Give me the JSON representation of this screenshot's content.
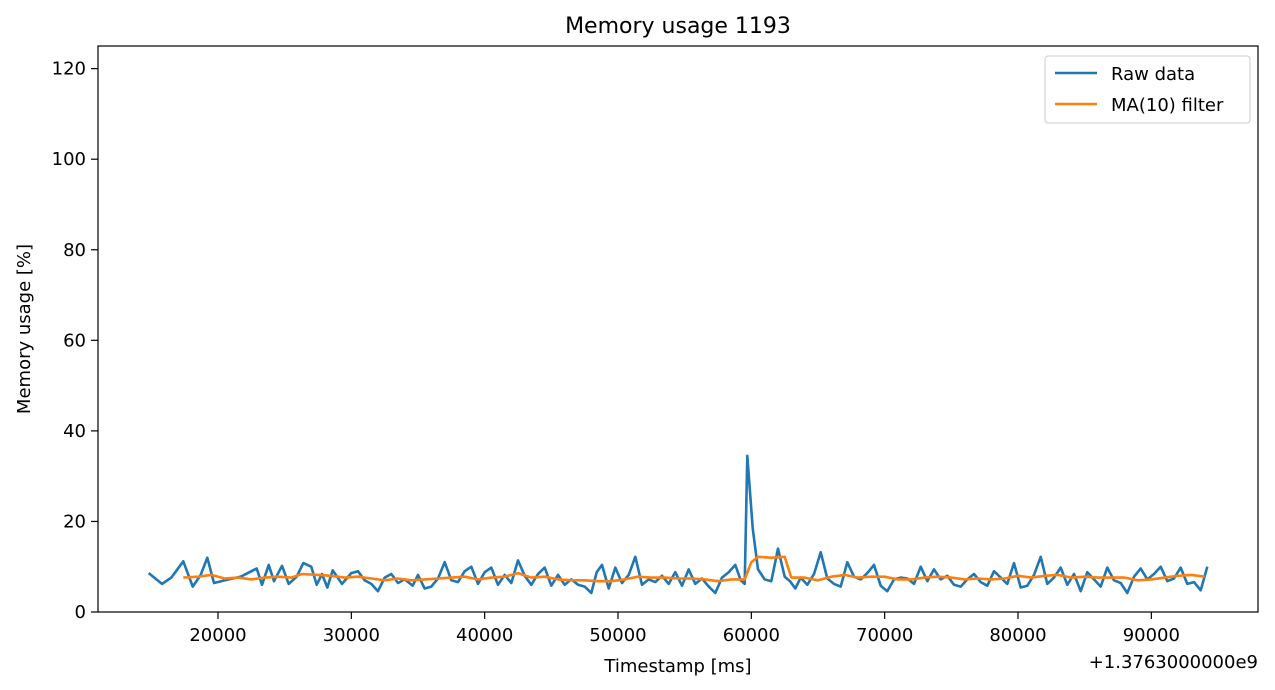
{
  "chart_data": {
    "type": "line",
    "title": "Memory usage 1193",
    "xlabel": "Timestamp [ms]",
    "ylabel": "Memory usage [%]",
    "x_offset_label": "+1.3763000000e9",
    "xlim": [
      11000,
      98000
    ],
    "ylim": [
      0,
      125
    ],
    "xticks": [
      20000,
      30000,
      40000,
      50000,
      60000,
      70000,
      80000,
      90000
    ],
    "xtick_labels": [
      "20000",
      "30000",
      "40000",
      "50000",
      "60000",
      "70000",
      "80000",
      "90000"
    ],
    "yticks": [
      0,
      20,
      40,
      60,
      80,
      100,
      120
    ],
    "ytick_labels": [
      "0",
      "20",
      "40",
      "60",
      "80",
      "100",
      "120"
    ],
    "grid": false,
    "legend_position": "top-right",
    "series": [
      {
        "name": "Raw data",
        "color": "#1f77b4",
        "points": [
          [
            14800,
            8.6
          ],
          [
            15800,
            6.2
          ],
          [
            16500,
            7.6
          ],
          [
            17400,
            11.2
          ],
          [
            18100,
            5.6
          ],
          [
            18700,
            8.2
          ],
          [
            19200,
            12.0
          ],
          [
            19700,
            6.4
          ],
          [
            20800,
            7.2
          ],
          [
            21700,
            7.8
          ],
          [
            22900,
            9.6
          ],
          [
            23300,
            6.0
          ],
          [
            23800,
            10.4
          ],
          [
            24200,
            6.8
          ],
          [
            24800,
            10.2
          ],
          [
            25300,
            6.2
          ],
          [
            25900,
            7.8
          ],
          [
            26400,
            10.8
          ],
          [
            27000,
            10.0
          ],
          [
            27400,
            6.0
          ],
          [
            27800,
            8.4
          ],
          [
            28200,
            5.4
          ],
          [
            28600,
            9.2
          ],
          [
            29300,
            6.2
          ],
          [
            30000,
            8.6
          ],
          [
            30500,
            9.0
          ],
          [
            31000,
            7.0
          ],
          [
            31500,
            6.2
          ],
          [
            32000,
            4.6
          ],
          [
            32500,
            7.6
          ],
          [
            33000,
            8.4
          ],
          [
            33500,
            6.4
          ],
          [
            34000,
            7.2
          ],
          [
            34600,
            5.8
          ],
          [
            35000,
            8.2
          ],
          [
            35500,
            5.2
          ],
          [
            36000,
            5.6
          ],
          [
            36500,
            7.4
          ],
          [
            37000,
            11.0
          ],
          [
            37500,
            7.0
          ],
          [
            38000,
            6.6
          ],
          [
            38500,
            9.0
          ],
          [
            39000,
            10.0
          ],
          [
            39500,
            6.2
          ],
          [
            40000,
            8.8
          ],
          [
            40500,
            9.8
          ],
          [
            41000,
            6.0
          ],
          [
            41500,
            8.2
          ],
          [
            42000,
            6.4
          ],
          [
            42500,
            11.4
          ],
          [
            43000,
            8.0
          ],
          [
            43500,
            6.0
          ],
          [
            44000,
            8.4
          ],
          [
            44500,
            9.8
          ],
          [
            45000,
            5.8
          ],
          [
            45500,
            8.2
          ],
          [
            46000,
            6.0
          ],
          [
            46500,
            7.2
          ],
          [
            47000,
            6.0
          ],
          [
            47500,
            5.6
          ],
          [
            48000,
            4.2
          ],
          [
            48400,
            8.8
          ],
          [
            48800,
            10.4
          ],
          [
            49300,
            5.2
          ],
          [
            49800,
            9.8
          ],
          [
            50300,
            6.4
          ],
          [
            50800,
            8.2
          ],
          [
            51300,
            12.2
          ],
          [
            51800,
            6.0
          ],
          [
            52300,
            7.2
          ],
          [
            52800,
            6.6
          ],
          [
            53300,
            8.0
          ],
          [
            53800,
            6.2
          ],
          [
            54300,
            8.8
          ],
          [
            54800,
            5.8
          ],
          [
            55300,
            9.4
          ],
          [
            55800,
            6.2
          ],
          [
            56300,
            7.4
          ],
          [
            56800,
            5.6
          ],
          [
            57300,
            4.2
          ],
          [
            57800,
            7.6
          ],
          [
            58300,
            8.8
          ],
          [
            58800,
            10.4
          ],
          [
            59200,
            7.0
          ],
          [
            59500,
            6.2
          ],
          [
            59700,
            34.5
          ],
          [
            60100,
            18.5
          ],
          [
            60500,
            9.4
          ],
          [
            61000,
            7.2
          ],
          [
            61500,
            6.8
          ],
          [
            62000,
            14.0
          ],
          [
            62500,
            7.8
          ],
          [
            62900,
            6.8
          ],
          [
            63300,
            5.2
          ],
          [
            63700,
            7.6
          ],
          [
            64200,
            6.0
          ],
          [
            64700,
            8.4
          ],
          [
            65200,
            13.2
          ],
          [
            65700,
            7.4
          ],
          [
            66200,
            6.2
          ],
          [
            66700,
            5.6
          ],
          [
            67200,
            11.0
          ],
          [
            67700,
            7.8
          ],
          [
            68200,
            7.2
          ],
          [
            68700,
            8.6
          ],
          [
            69200,
            10.4
          ],
          [
            69700,
            5.8
          ],
          [
            70200,
            4.6
          ],
          [
            70700,
            7.2
          ],
          [
            71200,
            7.6
          ],
          [
            71700,
            7.4
          ],
          [
            72200,
            6.2
          ],
          [
            72700,
            10.0
          ],
          [
            73200,
            6.8
          ],
          [
            73700,
            9.4
          ],
          [
            74200,
            7.2
          ],
          [
            74700,
            8.0
          ],
          [
            75200,
            6.0
          ],
          [
            75700,
            5.6
          ],
          [
            76200,
            7.2
          ],
          [
            76700,
            8.4
          ],
          [
            77200,
            6.6
          ],
          [
            77700,
            5.8
          ],
          [
            78200,
            9.0
          ],
          [
            78700,
            7.6
          ],
          [
            79200,
            6.2
          ],
          [
            79700,
            10.8
          ],
          [
            80200,
            5.4
          ],
          [
            80700,
            5.8
          ],
          [
            81200,
            8.2
          ],
          [
            81700,
            12.2
          ],
          [
            82200,
            6.2
          ],
          [
            82700,
            7.6
          ],
          [
            83200,
            9.8
          ],
          [
            83700,
            6.0
          ],
          [
            84200,
            8.4
          ],
          [
            84700,
            4.6
          ],
          [
            85200,
            8.8
          ],
          [
            85700,
            7.2
          ],
          [
            86200,
            5.6
          ],
          [
            86700,
            9.8
          ],
          [
            87200,
            7.0
          ],
          [
            87700,
            6.4
          ],
          [
            88200,
            4.2
          ],
          [
            88700,
            7.8
          ],
          [
            89200,
            9.6
          ],
          [
            89700,
            7.2
          ],
          [
            90200,
            8.4
          ],
          [
            90700,
            10.0
          ],
          [
            91200,
            6.8
          ],
          [
            91700,
            7.4
          ],
          [
            92200,
            9.8
          ],
          [
            92700,
            6.2
          ],
          [
            93200,
            6.6
          ],
          [
            93700,
            4.8
          ],
          [
            94200,
            10.0
          ]
        ]
      },
      {
        "name": "MA(10) filter",
        "color": "#ff7f0e",
        "points": [
          [
            17400,
            7.6
          ],
          [
            18500,
            7.8
          ],
          [
            19500,
            8.2
          ],
          [
            20500,
            7.4
          ],
          [
            21500,
            7.6
          ],
          [
            22500,
            7.2
          ],
          [
            23500,
            7.6
          ],
          [
            24500,
            7.8
          ],
          [
            25500,
            7.6
          ],
          [
            26300,
            8.4
          ],
          [
            27500,
            8.2
          ],
          [
            28500,
            8.0
          ],
          [
            29500,
            7.6
          ],
          [
            30500,
            7.8
          ],
          [
            31500,
            7.4
          ],
          [
            32500,
            7.0
          ],
          [
            33500,
            7.4
          ],
          [
            34500,
            7.0
          ],
          [
            35500,
            7.2
          ],
          [
            36500,
            7.4
          ],
          [
            37500,
            7.6
          ],
          [
            38500,
            7.8
          ],
          [
            39500,
            7.2
          ],
          [
            40500,
            7.6
          ],
          [
            41500,
            7.8
          ],
          [
            42500,
            8.6
          ],
          [
            43500,
            7.6
          ],
          [
            44500,
            7.8
          ],
          [
            45500,
            7.2
          ],
          [
            46500,
            7.0
          ],
          [
            47500,
            7.0
          ],
          [
            48500,
            6.8
          ],
          [
            49500,
            6.8
          ],
          [
            50500,
            7.2
          ],
          [
            51500,
            7.8
          ],
          [
            52500,
            7.6
          ],
          [
            53500,
            7.6
          ],
          [
            54500,
            7.4
          ],
          [
            55500,
            7.4
          ],
          [
            56500,
            7.2
          ],
          [
            57500,
            6.8
          ],
          [
            58500,
            7.2
          ],
          [
            59500,
            7.2
          ],
          [
            60000,
            11.0
          ],
          [
            60500,
            12.2
          ],
          [
            61500,
            12.0
          ],
          [
            62500,
            12.2
          ],
          [
            63000,
            7.6
          ],
          [
            64000,
            7.6
          ],
          [
            65000,
            7.0
          ],
          [
            66000,
            7.8
          ],
          [
            67000,
            8.2
          ],
          [
            68000,
            7.6
          ],
          [
            69000,
            7.8
          ],
          [
            70000,
            7.8
          ],
          [
            71000,
            7.2
          ],
          [
            72000,
            7.2
          ],
          [
            73000,
            7.6
          ],
          [
            74000,
            7.8
          ],
          [
            75000,
            7.6
          ],
          [
            76000,
            7.2
          ],
          [
            77000,
            7.4
          ],
          [
            78000,
            7.2
          ],
          [
            79000,
            7.4
          ],
          [
            80000,
            8.0
          ],
          [
            81000,
            7.6
          ],
          [
            82000,
            8.0
          ],
          [
            83000,
            8.2
          ],
          [
            84000,
            7.6
          ],
          [
            85000,
            7.8
          ],
          [
            86000,
            7.6
          ],
          [
            87000,
            7.6
          ],
          [
            88000,
            7.6
          ],
          [
            89000,
            7.0
          ],
          [
            90000,
            7.2
          ],
          [
            91000,
            7.6
          ],
          [
            92000,
            8.0
          ],
          [
            93000,
            8.2
          ],
          [
            94000,
            7.8
          ]
        ]
      }
    ]
  }
}
